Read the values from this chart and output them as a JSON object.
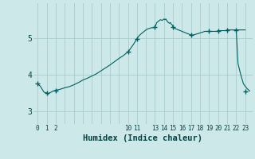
{
  "title": "",
  "xlabel": "Humidex (Indice chaleur)",
  "background_color": "#cce8e8",
  "line_color": "#006060",
  "grid_color": "#aacccc",
  "yticks": [
    3,
    4,
    5
  ],
  "ylim": [
    2.65,
    5.95
  ],
  "xlim": [
    -0.5,
    23.8
  ],
  "data_x": [
    0,
    0.3,
    0.5,
    0.7,
    1.0,
    1.1,
    1.3,
    1.5,
    1.7,
    2.0,
    2.5,
    3.0,
    3.5,
    4.0,
    4.5,
    5.0,
    5.5,
    6.0,
    6.5,
    7.0,
    7.5,
    8.0,
    8.5,
    9.0,
    9.5,
    10.0,
    10.2,
    10.4,
    10.6,
    10.8,
    11.0,
    11.2,
    11.4,
    11.6,
    11.8,
    12.0,
    12.2,
    12.4,
    12.6,
    12.8,
    13.0,
    13.2,
    13.4,
    13.6,
    13.8,
    14.0,
    14.1,
    14.2,
    14.3,
    14.4,
    14.5,
    14.6,
    14.7,
    14.8,
    14.9,
    15.0,
    15.2,
    15.4,
    15.6,
    15.8,
    16.0,
    16.2,
    16.4,
    16.6,
    16.8,
    17.0,
    17.2,
    17.5,
    17.8,
    18.0,
    18.3,
    18.5,
    18.8,
    19.0,
    19.3,
    19.5,
    19.8,
    20.0,
    20.3,
    20.5,
    20.8,
    21.0,
    21.2,
    21.5,
    21.8,
    22.0,
    22.3,
    22.5,
    22.8,
    23.0
  ],
  "data_y": [
    3.75,
    3.68,
    3.6,
    3.52,
    3.5,
    3.46,
    3.5,
    3.52,
    3.55,
    3.57,
    3.6,
    3.64,
    3.67,
    3.72,
    3.78,
    3.85,
    3.9,
    3.96,
    4.02,
    4.1,
    4.18,
    4.26,
    4.35,
    4.44,
    4.52,
    4.62,
    4.68,
    4.75,
    4.82,
    4.9,
    4.98,
    5.05,
    5.1,
    5.14,
    5.18,
    5.22,
    5.25,
    5.26,
    5.28,
    5.28,
    5.3,
    5.42,
    5.46,
    5.5,
    5.48,
    5.52,
    5.5,
    5.52,
    5.48,
    5.44,
    5.42,
    5.4,
    5.42,
    5.38,
    5.36,
    5.3,
    5.26,
    5.24,
    5.22,
    5.2,
    5.18,
    5.16,
    5.14,
    5.12,
    5.1,
    5.08,
    5.08,
    5.1,
    5.12,
    5.14,
    5.16,
    5.18,
    5.18,
    5.18,
    5.18,
    5.18,
    5.18,
    5.2,
    5.2,
    5.2,
    5.2,
    5.22,
    5.22,
    5.22,
    5.22,
    5.22,
    5.22,
    5.22,
    5.22,
    5.22
  ],
  "data_x2": [
    22.0,
    22.2,
    22.5,
    22.8,
    23.0,
    23.2,
    23.5
  ],
  "data_y2": [
    5.22,
    4.3,
    4.0,
    3.75,
    3.68,
    3.62,
    3.55
  ],
  "marker_x": [
    0,
    1,
    2,
    10,
    11,
    13,
    15,
    17,
    19,
    20,
    21,
    22,
    23
  ],
  "marker_y": [
    3.75,
    3.5,
    3.57,
    4.62,
    4.98,
    5.3,
    5.3,
    5.08,
    5.18,
    5.2,
    5.22,
    5.22,
    3.55
  ],
  "font_color": "#004444",
  "x_ticks": [
    0,
    1,
    2,
    3,
    4,
    5,
    6,
    7,
    8,
    9,
    10,
    11,
    12,
    13,
    14,
    15,
    16,
    17,
    18,
    19,
    20,
    21,
    22,
    23
  ],
  "x_tick_labels": [
    "0",
    "1",
    "2",
    "",
    "",
    "",
    "",
    "",
    "",
    "",
    "10",
    "11",
    "",
    "13",
    "14",
    "15",
    "16",
    "17",
    "18",
    "19",
    "20",
    "21",
    "22",
    "23"
  ]
}
